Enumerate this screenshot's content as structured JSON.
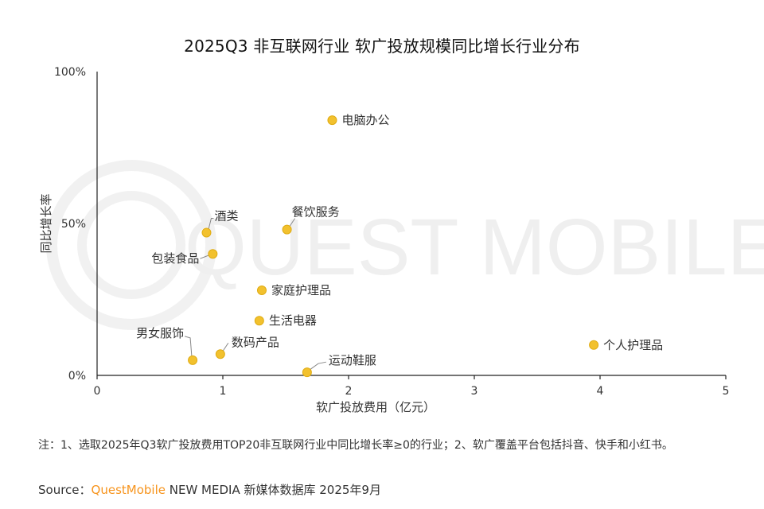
{
  "chart_data": {
    "type": "scatter",
    "title": "2025Q3 非互联网行业 软广投放规模同比增长行业分布",
    "xlabel": "软广投放费用（亿元）",
    "ylabel": "同比增长率",
    "xlim": [
      0,
      5
    ],
    "ylim": [
      0,
      100
    ],
    "x_ticks": [
      "0",
      "1",
      "2",
      "3",
      "4",
      "5"
    ],
    "y_ticks": [
      "0%",
      "50%",
      "100%"
    ],
    "grid": false,
    "points": [
      {
        "label": "电脑办公",
        "x": 1.87,
        "y": 84
      },
      {
        "label": "餐饮服务",
        "x": 1.51,
        "y": 48
      },
      {
        "label": "酒类",
        "x": 0.87,
        "y": 47
      },
      {
        "label": "包装食品",
        "x": 0.92,
        "y": 40
      },
      {
        "label": "家庭护理品",
        "x": 1.31,
        "y": 28
      },
      {
        "label": "生活电器",
        "x": 1.29,
        "y": 18
      },
      {
        "label": "个人护理品",
        "x": 3.95,
        "y": 10
      },
      {
        "label": "数码产品",
        "x": 0.98,
        "y": 7
      },
      {
        "label": "男女服饰",
        "x": 0.76,
        "y": 5
      },
      {
        "label": "运动鞋服",
        "x": 1.67,
        "y": 1
      }
    ],
    "point_color": "#F2C12E"
  },
  "watermark": "QUEST MOBILE",
  "note": "注：1、选取2025年Q3软广投放费用TOP20非互联网行业中同比增长率≥0的行业；2、软广覆盖平台包括抖音、快手和小红书。",
  "source": {
    "prefix": "Source：",
    "brand": "QuestMobile",
    "rest": " NEW MEDIA 新媒体数据库 2025年9月"
  }
}
